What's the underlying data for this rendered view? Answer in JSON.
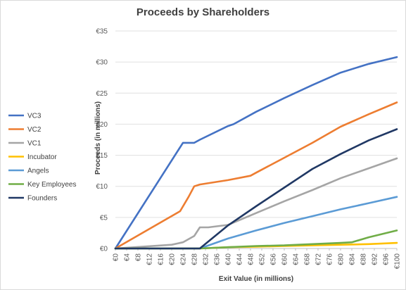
{
  "chart_data": {
    "type": "line",
    "title": "Proceeds by Shareholders",
    "xlabel": "Exit Value (in millions)",
    "ylabel": "Proceeds (in millions)",
    "x_unit": "€ millions",
    "y_unit": "€ millions",
    "xlim": [
      0,
      100
    ],
    "ylim": [
      0,
      35
    ],
    "y_ticks": [
      "€0",
      "€5",
      "€10",
      "€15",
      "€20",
      "€25",
      "€30",
      "€35"
    ],
    "x_ticks": [
      "€0",
      "€4",
      "€8",
      "€12",
      "€16",
      "€20",
      "€24",
      "€28",
      "€32",
      "€36",
      "€40",
      "€44",
      "€48",
      "€52",
      "€56",
      "€60",
      "€64",
      "€68",
      "€72",
      "€76",
      "€80",
      "€84",
      "€88",
      "€92",
      "€96",
      "€100"
    ],
    "gridlines": "horizontal",
    "legend_position": "left",
    "series": [
      {
        "name": "VC3",
        "color": "#4472c4",
        "x": [
          0,
          24,
          28,
          30,
          40,
          42,
          50,
          60,
          70,
          80,
          90,
          100
        ],
        "y": [
          0,
          17,
          17,
          17.5,
          19.7,
          20,
          22,
          24.2,
          26.3,
          28.3,
          29.7,
          30.8
        ]
      },
      {
        "name": "VC2",
        "color": "#ed7d31",
        "x": [
          0,
          23,
          26,
          28,
          30,
          40,
          48,
          50,
          60,
          70,
          80,
          90,
          100
        ],
        "y": [
          0,
          6,
          8.3,
          10,
          10.3,
          11,
          11.7,
          12.2,
          14.6,
          17,
          19.6,
          21.6,
          23.5
        ]
      },
      {
        "name": "VC1",
        "color": "#a5a5a5",
        "x": [
          0,
          20,
          24,
          28,
          30,
          33,
          40,
          50,
          60,
          70,
          80,
          90,
          100
        ],
        "y": [
          0,
          0.6,
          1,
          2,
          3.4,
          3.4,
          3.8,
          5.7,
          7.6,
          9.4,
          11.3,
          12.9,
          14.5
        ]
      },
      {
        "name": "Incubator",
        "color": "#ffc000",
        "x": [
          0,
          30,
          40,
          50,
          60,
          70,
          80,
          90,
          100
        ],
        "y": [
          0,
          0,
          0.2,
          0.3,
          0.4,
          0.5,
          0.6,
          0.7,
          0.9
        ]
      },
      {
        "name": "Angels",
        "color": "#5b9bd5",
        "x": [
          0,
          30,
          40,
          50,
          60,
          70,
          80,
          90,
          100
        ],
        "y": [
          0,
          0,
          1.6,
          2.9,
          4.1,
          5.2,
          6.3,
          7.3,
          8.3
        ]
      },
      {
        "name": "Key Employees",
        "color": "#70ad47",
        "x": [
          0,
          30,
          40,
          50,
          60,
          70,
          80,
          84,
          90,
          100
        ],
        "y": [
          0,
          0,
          0.2,
          0.4,
          0.5,
          0.7,
          0.9,
          1.0,
          1.8,
          2.9
        ]
      },
      {
        "name": "Founders",
        "color": "#203864",
        "x": [
          0,
          30,
          40,
          50,
          60,
          70,
          80,
          90,
          100
        ],
        "y": [
          0,
          0,
          3.7,
          6.8,
          9.8,
          12.8,
          15.2,
          17.4,
          19.2
        ]
      }
    ]
  }
}
